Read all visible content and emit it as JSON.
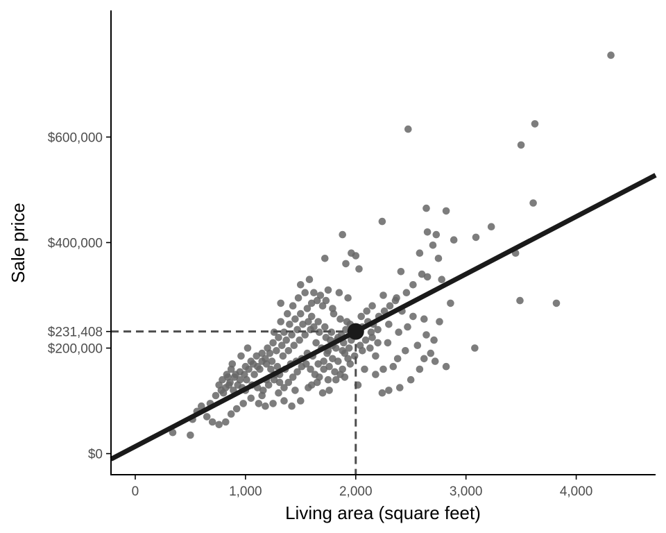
{
  "chart_data": {
    "type": "scatter",
    "title": "",
    "xlabel": "Living area (square feet)",
    "ylabel": "Sale price",
    "xlim": [
      -220,
      4720
    ],
    "ylim": [
      -40000,
      840000
    ],
    "x_ticks": [
      0,
      1000,
      2000,
      3000,
      4000
    ],
    "x_tick_labels": [
      "0",
      "1,000",
      "2,000",
      "3,000",
      "4,000"
    ],
    "y_ticks": [
      0,
      200000,
      231408,
      400000,
      600000
    ],
    "y_tick_labels": [
      "$0",
      "$200,000",
      "$231,408",
      "$400,000",
      "$600,000"
    ],
    "grid": false,
    "colors": {
      "points": "#666666",
      "line": "#1a1a1a",
      "guides": "#4d4d4d"
    },
    "fit_line": {
      "intercept": 13500,
      "slope": 108.95
    },
    "highlight": {
      "x": 2000,
      "y": 231408
    },
    "points": [
      [
        4315,
        755000
      ],
      [
        2475,
        615000
      ],
      [
        3625,
        625000
      ],
      [
        3500,
        585000
      ],
      [
        3610,
        475000
      ],
      [
        2640,
        465000
      ],
      [
        2820,
        460000
      ],
      [
        2240,
        440000
      ],
      [
        3230,
        430000
      ],
      [
        3090,
        410000
      ],
      [
        1880,
        415000
      ],
      [
        2650,
        420000
      ],
      [
        2730,
        415000
      ],
      [
        2890,
        405000
      ],
      [
        2700,
        395000
      ],
      [
        2580,
        380000
      ],
      [
        2750,
        370000
      ],
      [
        3450,
        380000
      ],
      [
        3490,
        290000
      ],
      [
        3820,
        285000
      ],
      [
        3080,
        200000
      ],
      [
        1960,
        380000
      ],
      [
        2000,
        375000
      ],
      [
        1720,
        370000
      ],
      [
        1910,
        360000
      ],
      [
        2030,
        350000
      ],
      [
        2410,
        345000
      ],
      [
        2600,
        340000
      ],
      [
        2650,
        335000
      ],
      [
        2780,
        330000
      ],
      [
        1320,
        285000
      ],
      [
        1500,
        320000
      ],
      [
        1580,
        330000
      ],
      [
        1620,
        305000
      ],
      [
        1750,
        310000
      ],
      [
        1850,
        305000
      ],
      [
        1930,
        295000
      ],
      [
        1650,
        290000
      ],
      [
        1700,
        280000
      ],
      [
        1790,
        275000
      ],
      [
        2250,
        300000
      ],
      [
        2370,
        295000
      ],
      [
        2460,
        305000
      ],
      [
        2520,
        320000
      ],
      [
        2860,
        285000
      ],
      [
        2760,
        250000
      ],
      [
        2620,
        255000
      ],
      [
        2520,
        260000
      ],
      [
        2470,
        240000
      ],
      [
        2390,
        230000
      ],
      [
        2300,
        245000
      ],
      [
        2200,
        235000
      ],
      [
        2150,
        220000
      ],
      [
        2290,
        210000
      ],
      [
        2130,
        200000
      ],
      [
        2060,
        195000
      ],
      [
        2180,
        185000
      ],
      [
        2250,
        160000
      ],
      [
        2180,
        150000
      ],
      [
        2300,
        120000
      ],
      [
        2240,
        115000
      ],
      [
        2400,
        125000
      ],
      [
        2500,
        140000
      ],
      [
        2580,
        160000
      ],
      [
        2620,
        180000
      ],
      [
        2680,
        190000
      ],
      [
        2720,
        175000
      ],
      [
        2820,
        165000
      ],
      [
        2640,
        225000
      ],
      [
        2710,
        215000
      ],
      [
        2340,
        165000
      ],
      [
        2380,
        180000
      ],
      [
        2450,
        195000
      ],
      [
        2560,
        205000
      ],
      [
        2020,
        130000
      ],
      [
        1950,
        170000
      ],
      [
        1880,
        160000
      ],
      [
        1820,
        140000
      ],
      [
        1760,
        120000
      ],
      [
        1700,
        115000
      ],
      [
        1650,
        135000
      ],
      [
        1570,
        125000
      ],
      [
        1500,
        100000
      ],
      [
        1420,
        90000
      ],
      [
        1350,
        100000
      ],
      [
        1250,
        95000
      ],
      [
        1180,
        90000
      ],
      [
        1120,
        95000
      ],
      [
        1050,
        105000
      ],
      [
        980,
        95000
      ],
      [
        920,
        85000
      ],
      [
        870,
        75000
      ],
      [
        820,
        60000
      ],
      [
        760,
        55000
      ],
      [
        700,
        60000
      ],
      [
        650,
        70000
      ],
      [
        560,
        80000
      ],
      [
        520,
        65000
      ],
      [
        500,
        35000
      ],
      [
        340,
        40000
      ],
      [
        600,
        90000
      ],
      [
        680,
        95000
      ],
      [
        730,
        110000
      ],
      [
        780,
        120000
      ],
      [
        820,
        125000
      ],
      [
        860,
        135000
      ],
      [
        900,
        145000
      ],
      [
        950,
        155000
      ],
      [
        1000,
        165000
      ],
      [
        1050,
        175000
      ],
      [
        1100,
        185000
      ],
      [
        1150,
        190000
      ],
      [
        1200,
        200000
      ],
      [
        1250,
        210000
      ],
      [
        1300,
        220000
      ],
      [
        1350,
        230000
      ],
      [
        1400,
        245000
      ],
      [
        1450,
        255000
      ],
      [
        1500,
        265000
      ],
      [
        1560,
        275000
      ],
      [
        1600,
        260000
      ],
      [
        1660,
        250000
      ],
      [
        1720,
        240000
      ],
      [
        1780,
        230000
      ],
      [
        1840,
        220000
      ],
      [
        1890,
        210000
      ],
      [
        1940,
        200000
      ],
      [
        1020,
        200000
      ],
      [
        960,
        185000
      ],
      [
        880,
        170000
      ],
      [
        1080,
        150000
      ],
      [
        1130,
        160000
      ],
      [
        1190,
        140000
      ],
      [
        1240,
        175000
      ],
      [
        1290,
        165000
      ],
      [
        1340,
        185000
      ],
      [
        1390,
        195000
      ],
      [
        1440,
        205000
      ],
      [
        1490,
        215000
      ],
      [
        1540,
        225000
      ],
      [
        1590,
        235000
      ],
      [
        1640,
        210000
      ],
      [
        1690,
        200000
      ],
      [
        1740,
        190000
      ],
      [
        1790,
        180000
      ],
      [
        1840,
        175000
      ],
      [
        1900,
        190000
      ],
      [
        1960,
        215000
      ],
      [
        2010,
        225000
      ],
      [
        2060,
        240000
      ],
      [
        2110,
        250000
      ],
      [
        2160,
        245000
      ],
      [
        2210,
        260000
      ],
      [
        2260,
        270000
      ],
      [
        2310,
        280000
      ],
      [
        2360,
        290000
      ],
      [
        2420,
        270000
      ],
      [
        760,
        130000
      ],
      [
        800,
        115000
      ],
      [
        840,
        145000
      ],
      [
        890,
        120000
      ],
      [
        930,
        130000
      ],
      [
        970,
        125000
      ],
      [
        1010,
        140000
      ],
      [
        1060,
        130000
      ],
      [
        1110,
        125000
      ],
      [
        1160,
        120000
      ],
      [
        1210,
        130000
      ],
      [
        1260,
        140000
      ],
      [
        1310,
        150000
      ],
      [
        1360,
        160000
      ],
      [
        1410,
        170000
      ],
      [
        1460,
        175000
      ],
      [
        1510,
        180000
      ],
      [
        1560,
        190000
      ],
      [
        1610,
        185000
      ],
      [
        1660,
        170000
      ],
      [
        1710,
        160000
      ],
      [
        1760,
        165000
      ],
      [
        1810,
        155000
      ],
      [
        1860,
        150000
      ],
      [
        1260,
        230000
      ],
      [
        1320,
        250000
      ],
      [
        1380,
        265000
      ],
      [
        1430,
        280000
      ],
      [
        1480,
        295000
      ],
      [
        1540,
        305000
      ],
      [
        1600,
        285000
      ],
      [
        1680,
        300000
      ],
      [
        1730,
        290000
      ],
      [
        1800,
        265000
      ],
      [
        1860,
        255000
      ],
      [
        1920,
        250000
      ],
      [
        1980,
        240000
      ],
      [
        2050,
        260000
      ],
      [
        2100,
        270000
      ],
      [
        2150,
        280000
      ],
      [
        790,
        140000
      ],
      [
        830,
        150000
      ],
      [
        870,
        160000
      ],
      [
        910,
        150000
      ],
      [
        950,
        140000
      ],
      [
        990,
        150000
      ],
      [
        1030,
        160000
      ],
      [
        1070,
        170000
      ],
      [
        1110,
        165000
      ],
      [
        1150,
        175000
      ],
      [
        1190,
        170000
      ],
      [
        1230,
        160000
      ],
      [
        1270,
        150000
      ],
      [
        1310,
        135000
      ],
      [
        1350,
        125000
      ],
      [
        1390,
        135000
      ],
      [
        1430,
        145000
      ],
      [
        1470,
        155000
      ],
      [
        1510,
        165000
      ],
      [
        1550,
        170000
      ],
      [
        1590,
        160000
      ],
      [
        1630,
        150000
      ],
      [
        1670,
        145000
      ],
      [
        1710,
        175000
      ],
      [
        1750,
        195000
      ],
      [
        1790,
        205000
      ],
      [
        1830,
        215000
      ],
      [
        1870,
        225000
      ],
      [
        1910,
        235000
      ],
      [
        1950,
        245000
      ],
      [
        850,
        130000
      ],
      [
        1000,
        120000
      ],
      [
        1150,
        110000
      ],
      [
        1300,
        115000
      ],
      [
        1450,
        120000
      ],
      [
        1600,
        130000
      ],
      [
        1750,
        140000
      ],
      [
        1900,
        145000
      ],
      [
        2080,
        160000
      ],
      [
        2200,
        210000
      ],
      [
        1180,
        180000
      ],
      [
        1220,
        190000
      ],
      [
        1280,
        195000
      ],
      [
        1330,
        205000
      ],
      [
        1370,
        215000
      ],
      [
        1420,
        225000
      ],
      [
        1470,
        235000
      ],
      [
        1520,
        245000
      ],
      [
        1570,
        250000
      ],
      [
        1620,
        240000
      ],
      [
        1670,
        230000
      ],
      [
        1730,
        220000
      ],
      [
        1770,
        215000
      ],
      [
        1820,
        200000
      ],
      [
        1880,
        195000
      ],
      [
        1930,
        180000
      ],
      [
        1990,
        185000
      ],
      [
        2040,
        205000
      ],
      [
        2090,
        215000
      ],
      [
        2140,
        230000
      ]
    ]
  }
}
